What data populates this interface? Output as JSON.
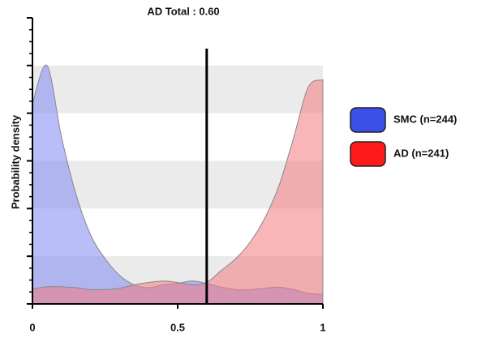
{
  "chart_data": {
    "type": "density",
    "title": "AD Total : 0.60",
    "y_label": "Probability density",
    "x": [
      0,
      0.05,
      0.1,
      0.15,
      0.2,
      0.25,
      0.3,
      0.35,
      0.4,
      0.45,
      0.5,
      0.55,
      0.6,
      0.65,
      0.7,
      0.75,
      0.8,
      0.85,
      0.9,
      0.95,
      1
    ],
    "series": [
      {
        "name": "SMC (n=244)",
        "color": "#3b50e6",
        "fill": "#7f86f2",
        "values": [
          4.2,
          5.0,
          3.5,
          2.3,
          1.45,
          0.95,
          0.6,
          0.4,
          0.34,
          0.4,
          0.43,
          0.48,
          0.43,
          0.35,
          0.3,
          0.3,
          0.33,
          0.35,
          0.3,
          0.22,
          0.2
        ]
      },
      {
        "name": "AD (n=241)",
        "color": "#ff1a1a",
        "fill": "#f47a80",
        "values": [
          0.31,
          0.36,
          0.36,
          0.34,
          0.3,
          0.3,
          0.33,
          0.4,
          0.45,
          0.48,
          0.45,
          0.4,
          0.45,
          0.7,
          0.95,
          1.3,
          1.8,
          2.5,
          3.5,
          4.55,
          4.7
        ]
      }
    ],
    "threshold": 0.6,
    "xlim": [
      0,
      1
    ],
    "xticks": [
      0,
      0.5,
      1
    ],
    "ylim": [
      0,
      6
    ],
    "yticks": [
      0,
      1,
      2,
      3,
      4,
      5,
      6
    ],
    "grid": "bands",
    "legend": "right"
  }
}
